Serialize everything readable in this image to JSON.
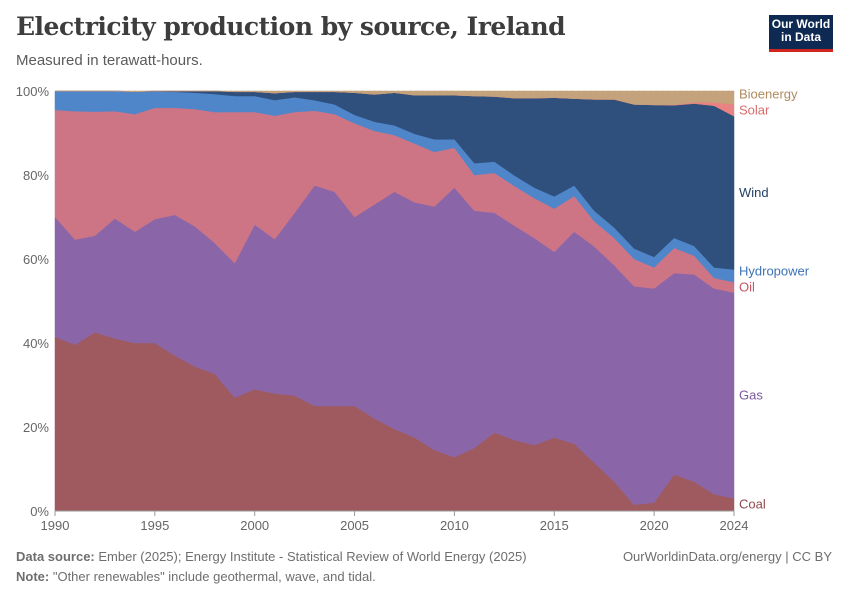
{
  "header": {
    "title": "Electricity production by source, Ireland",
    "subtitle": "Measured in terawatt-hours.",
    "logo_line1": "Our World",
    "logo_line2": "in Data"
  },
  "footer": {
    "source_label": "Data source:",
    "source_text": "Ember (2025); Energy Institute - Statistical Review of World Energy (2025)",
    "note_label": "Note:",
    "note_text": "\"Other renewables\" include geothermal, wave, and tidal.",
    "credit": "OurWorldinData.org/energy | CC BY"
  },
  "chart_data": {
    "type": "area",
    "stacked": true,
    "normalized_percent": true,
    "x_ticks": [
      "1990",
      "1995",
      "2000",
      "2005",
      "2010",
      "2015",
      "2020",
      "2024"
    ],
    "y_ticks": [
      "0%",
      "20%",
      "40%",
      "60%",
      "80%",
      "100%"
    ],
    "ylim": [
      0,
      100
    ],
    "xlim": [
      1990,
      2024
    ],
    "grid": "horizontal dashed",
    "legend": "right, labels at series ends",
    "x": [
      1990,
      1991,
      1992,
      1993,
      1994,
      1995,
      1996,
      1997,
      1998,
      1999,
      2000,
      2001,
      2002,
      2003,
      2004,
      2005,
      2006,
      2007,
      2008,
      2009,
      2010,
      2011,
      2012,
      2013,
      2014,
      2015,
      2016,
      2017,
      2018,
      2019,
      2020,
      2021,
      2022,
      2023,
      2024
    ],
    "series": [
      {
        "name": "Coal",
        "color": "#9e5a5e",
        "values": [
          41.5,
          39.5,
          42.5,
          41,
          40,
          40,
          37,
          34.5,
          32.5,
          27,
          29,
          28.5,
          27.5,
          25,
          25,
          25,
          22,
          19.5,
          17.5,
          14.5,
          12.8,
          15,
          18.7,
          17,
          15.7,
          17.5,
          16,
          11.5,
          7,
          1.5,
          2,
          8.7,
          7,
          4,
          3
        ]
      },
      {
        "name": "Gas",
        "color": "#8a66a8",
        "values": [
          28.5,
          25,
          23,
          28.5,
          26.5,
          29.5,
          33.5,
          33.5,
          31,
          32,
          39.2,
          37.5,
          43.5,
          52.5,
          51,
          45,
          51,
          56.5,
          56,
          58,
          64.2,
          56.5,
          52.3,
          51.3,
          49.3,
          44.2,
          50.5,
          51.5,
          51.5,
          52,
          51,
          48,
          49.5,
          49,
          49
        ]
      },
      {
        "name": "Oil",
        "color": "#cd7485",
        "values": [
          25.5,
          30.5,
          29.5,
          25.5,
          28,
          26.5,
          25.5,
          28,
          31,
          36,
          26.8,
          30,
          24,
          17.8,
          18.5,
          22.3,
          17.5,
          13.5,
          14,
          13,
          9.5,
          8.5,
          9.5,
          9.5,
          9.5,
          10.3,
          8.5,
          6,
          6.5,
          6.5,
          5,
          6,
          4.5,
          2.5,
          2.5
        ]
      },
      {
        "name": "Hydropower",
        "color": "#4e86c9",
        "values": [
          4.5,
          4.8,
          4.9,
          4.8,
          5.3,
          3.9,
          3.8,
          3.9,
          4.3,
          3.8,
          3.8,
          3.8,
          3.5,
          2.5,
          2.3,
          2,
          2.2,
          2.3,
          2.3,
          3,
          2,
          2.8,
          2.7,
          2.5,
          2.5,
          2.9,
          2.5,
          2.5,
          2.5,
          2.5,
          2.5,
          2.4,
          2.3,
          2.5,
          3
        ]
      },
      {
        "name": "Wind",
        "color": "#2f4f7c",
        "values": [
          0,
          0,
          0,
          0,
          0,
          0.1,
          0.2,
          0.4,
          0.7,
          1,
          1,
          1.7,
          1.3,
          2,
          3,
          5.3,
          6.5,
          7.8,
          9.2,
          10.5,
          10.5,
          16,
          15.5,
          18.5,
          21.3,
          23.5,
          20.7,
          26.5,
          30.5,
          34.3,
          36.2,
          31.6,
          34,
          38.5,
          36.5
        ]
      },
      {
        "name": "Solar",
        "color": "#e98282",
        "values": [
          0,
          0,
          0,
          0,
          0,
          0,
          0,
          0,
          0,
          0,
          0,
          0,
          0,
          0,
          0,
          0,
          0,
          0,
          0,
          0,
          0,
          0,
          0,
          0,
          0,
          0,
          0,
          0,
          0,
          0,
          0,
          0.1,
          0.3,
          0.8,
          2.8
        ]
      },
      {
        "name": "Bioenergy",
        "color": "#c4a27b",
        "values": [
          0,
          0,
          0,
          0,
          0.2,
          0,
          0,
          0,
          0,
          0.2,
          0.2,
          0.5,
          0.2,
          0.2,
          0.2,
          0.4,
          0.8,
          0.4,
          1,
          1,
          1,
          1.2,
          1.3,
          1.7,
          1.7,
          1.6,
          1.8,
          2,
          2,
          3.2,
          3.3,
          3.3,
          2.7,
          2.7,
          3.2
        ]
      }
    ]
  }
}
